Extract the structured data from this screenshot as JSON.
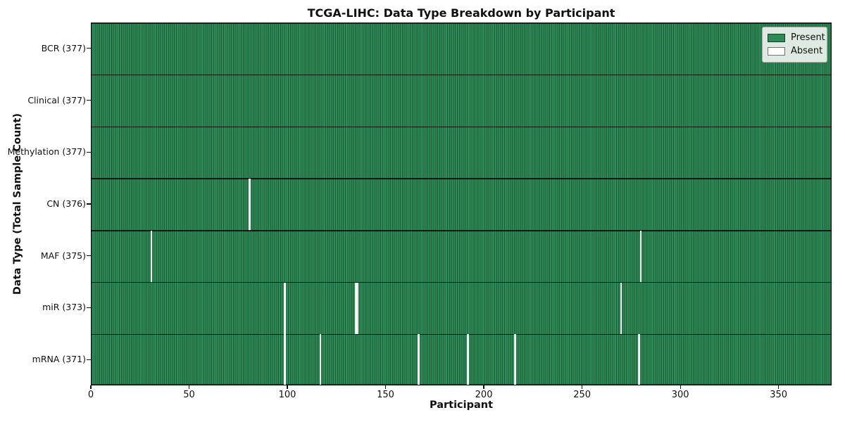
{
  "chart_data": {
    "type": "heatmap",
    "title": "TCGA-LIHC: Data Type Breakdown by Participant",
    "xlabel": "Participant",
    "ylabel": "Data Type (Total Sample Count)",
    "n_participants": 377,
    "xlim": [
      0,
      377
    ],
    "x_ticks": [
      0,
      50,
      100,
      150,
      200,
      250,
      300,
      350
    ],
    "rows": [
      {
        "label": "BCR (377)",
        "data_type": "BCR",
        "present_count": 377,
        "absent_participants": []
      },
      {
        "label": "Clinical (377)",
        "data_type": "Clinical",
        "present_count": 377,
        "absent_participants": []
      },
      {
        "label": "Methylation (377)",
        "data_type": "Methylation",
        "present_count": 377,
        "absent_participants": []
      },
      {
        "label": "CN (376)",
        "data_type": "CN",
        "present_count": 376,
        "absent_participants": [
          80
        ]
      },
      {
        "label": "MAF (375)",
        "data_type": "MAF",
        "present_count": 375,
        "absent_participants": [
          30,
          279
        ]
      },
      {
        "label": "miR (373)",
        "data_type": "miR",
        "present_count": 373,
        "absent_participants": [
          98,
          134,
          135,
          269
        ]
      },
      {
        "label": "mRNA (371)",
        "data_type": "mRNA",
        "present_count": 371,
        "absent_participants": [
          98,
          116,
          166,
          191,
          215,
          278
        ]
      }
    ],
    "legend": {
      "position": "upper right",
      "items": [
        {
          "label": "Present",
          "color": "#2e8b57"
        },
        {
          "label": "Absent",
          "color": "#ffffff"
        }
      ]
    },
    "colors": {
      "present": "#2e8b57",
      "present_edge": "#1f5c3a",
      "absent": "#ffffff",
      "absent_edge": "#c9c9c9",
      "spine": "#111111"
    },
    "grid": false
  }
}
